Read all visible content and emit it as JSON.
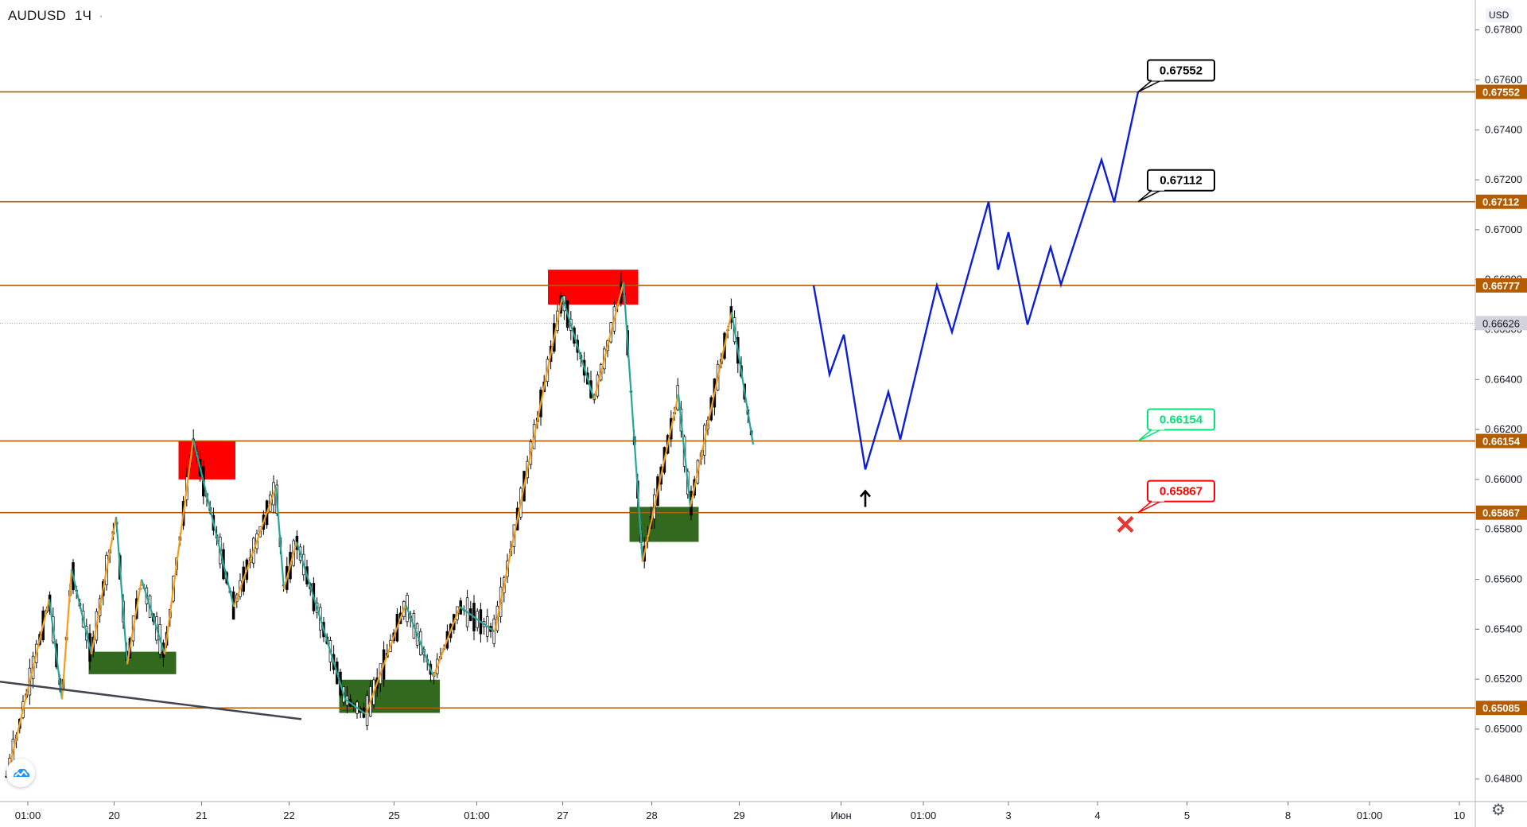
{
  "header": {
    "symbol": "AUDUSD",
    "interval": "1Ч",
    "separator": "·"
  },
  "axis": {
    "currency": "USD"
  },
  "chart_data": {
    "type": "candlestick",
    "symbol": "AUDUSD",
    "ylim": [
      0.6471,
      0.6792
    ],
    "y_ticks": [
      "0.67800",
      "0.67600",
      "0.67400",
      "0.67200",
      "0.67000",
      "0.66800",
      "0.66600",
      "0.66400",
      "0.66200",
      "0.66000",
      "0.65800",
      "0.65600",
      "0.65400",
      "0.65200",
      "0.65000",
      "0.64800"
    ],
    "x_ticks": [
      {
        "label": "01:00",
        "x": 0.035
      },
      {
        "label": "20",
        "x": 0.1435
      },
      {
        "label": "21",
        "x": 0.2535
      },
      {
        "label": "22",
        "x": 0.3635
      },
      {
        "label": "25",
        "x": 0.4955
      },
      {
        "label": "01:00",
        "x": 0.5995
      },
      {
        "label": "27",
        "x": 0.7075
      },
      {
        "label": "28",
        "x": 0.8195
      },
      {
        "label": "29",
        "x": 0.9295
      },
      {
        "label": "Июн",
        "x": 1.0575
      },
      {
        "label": "01:00",
        "x": 1.161
      },
      {
        "label": "3",
        "x": 1.268
      },
      {
        "label": "4",
        "x": 1.38
      },
      {
        "label": "5",
        "x": 1.4925
      },
      {
        "label": "8",
        "x": 1.6195
      },
      {
        "label": "01:00",
        "x": 1.722
      },
      {
        "label": "10",
        "x": 1.835
      }
    ],
    "levels": [
      {
        "label": "0.67552",
        "value": 0.67552
      },
      {
        "label": "0.67112",
        "value": 0.67112
      },
      {
        "label": "0.66777",
        "value": 0.66777
      },
      {
        "label": "0.66154",
        "value": 0.66154
      },
      {
        "label": "0.65867",
        "value": 0.65867
      },
      {
        "label": "0.65085",
        "value": 0.65085
      }
    ],
    "current_price": {
      "label": "0.66626",
      "value": 0.66626
    },
    "targets": [
      {
        "label": "0.67552",
        "value": 0.67552,
        "x": 1.431,
        "color": "#000000"
      },
      {
        "label": "0.67112",
        "value": 0.67112,
        "x": 1.431,
        "color": "#000000"
      },
      {
        "label": "0.66154",
        "value": 0.66154,
        "x": 1.431,
        "color": "#00e676"
      },
      {
        "label": "0.65867",
        "value": 0.65867,
        "x": 1.431,
        "color": "#ff0000"
      }
    ],
    "zigzag": [
      [
        0.009,
        0.6481
      ],
      [
        0.062,
        0.6552
      ],
      [
        0.078,
        0.6512
      ],
      [
        0.09,
        0.6564
      ],
      [
        0.115,
        0.653
      ],
      [
        0.146,
        0.6585
      ],
      [
        0.16,
        0.6526
      ],
      [
        0.178,
        0.656
      ],
      [
        0.207,
        0.653
      ],
      [
        0.243,
        0.6616
      ],
      [
        0.294,
        0.6549
      ],
      [
        0.347,
        0.6597
      ],
      [
        0.357,
        0.6556
      ],
      [
        0.373,
        0.6575
      ],
      [
        0.434,
        0.6512
      ],
      [
        0.46,
        0.6506
      ],
      [
        0.51,
        0.655
      ],
      [
        0.545,
        0.6521
      ],
      [
        0.578,
        0.6549
      ],
      [
        0.622,
        0.6539
      ],
      [
        0.707,
        0.6673
      ],
      [
        0.747,
        0.6632
      ],
      [
        0.784,
        0.6679
      ],
      [
        0.808,
        0.6567
      ],
      [
        0.853,
        0.6634
      ],
      [
        0.868,
        0.6589
      ],
      [
        0.92,
        0.6667
      ],
      [
        0.947,
        0.6614
      ]
    ],
    "forecast": [
      [
        1.023,
        0.66777
      ],
      [
        1.043,
        0.6642
      ],
      [
        1.061,
        0.6658
      ],
      [
        1.088,
        0.6604
      ],
      [
        1.117,
        0.6635
      ],
      [
        1.132,
        0.6616
      ],
      [
        1.178,
        0.66777
      ],
      [
        1.197,
        0.6659
      ],
      [
        1.243,
        0.67112
      ],
      [
        1.255,
        0.6684
      ],
      [
        1.268,
        0.6699
      ],
      [
        1.292,
        0.6662
      ],
      [
        1.321,
        0.6693
      ],
      [
        1.334,
        0.6678
      ],
      [
        1.385,
        0.6728
      ],
      [
        1.401,
        0.6711
      ],
      [
        1.431,
        0.67552
      ]
    ],
    "zones": [
      {
        "kind": "supply",
        "x0": 0.2245,
        "x1": 0.296,
        "y0": 0.66,
        "y1": 0.66153
      },
      {
        "kind": "supply",
        "x0": 0.689,
        "x1": 0.8025,
        "y0": 0.667,
        "y1": 0.6684
      },
      {
        "kind": "demand",
        "x0": 0.1115,
        "x1": 0.2215,
        "y0": 0.6522,
        "y1": 0.6531
      },
      {
        "kind": "demand",
        "x0": 0.4265,
        "x1": 0.553,
        "y0": 0.65065,
        "y1": 0.65198
      },
      {
        "kind": "demand",
        "x0": 0.7915,
        "x1": 0.8785,
        "y0": 0.6575,
        "y1": 0.6589
      }
    ],
    "trendline": [
      [
        0.0,
        0.6519
      ],
      [
        0.379,
        0.6504
      ]
    ],
    "up_arrow": {
      "x": 1.088,
      "value": 0.6596
    },
    "cross": {
      "x": 1.415,
      "value": 0.6582
    }
  }
}
